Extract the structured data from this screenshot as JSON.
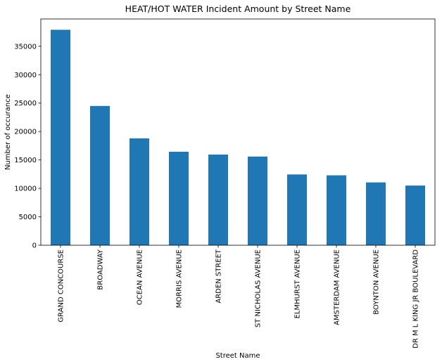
{
  "chart_data": {
    "type": "bar",
    "title": "HEAT/HOT WATER Incident Amount by Street Name",
    "xlabel": "Street Name",
    "ylabel": "Number of occurance",
    "categories": [
      "GRAND CONCOURSE",
      "BROADWAY",
      "OCEAN AVENUE",
      "MORRIS AVENUE",
      "ARDEN STREET",
      "ST NICHOLAS AVENUE",
      "ELMHURST AVENUE",
      "AMSTERDAM AVENUE",
      "BOYNTON AVENUE",
      "DR M L KING JR BOULEVARD"
    ],
    "values": [
      37900,
      24500,
      18800,
      16450,
      15950,
      15600,
      12450,
      12300,
      11050,
      10500
    ],
    "ylim": [
      0,
      39800
    ],
    "yticks": [
      0,
      5000,
      10000,
      15000,
      20000,
      25000,
      30000,
      35000
    ],
    "grid": false,
    "legend": "none",
    "bar_color": "#1f77b4"
  }
}
